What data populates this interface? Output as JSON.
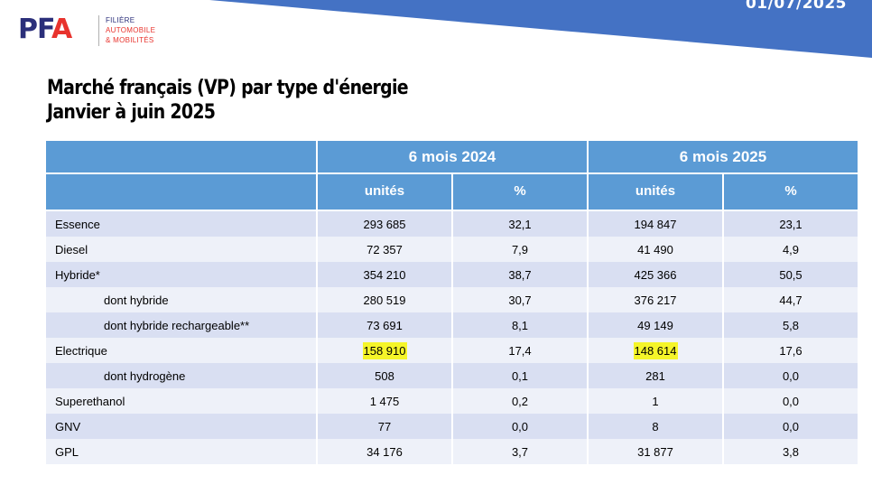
{
  "slide": {
    "date": "01/07/2025",
    "logo": {
      "mark": "PFA",
      "lines": [
        "FILIÈRE",
        "AUTOMOBILE",
        "& MOBILITÉS"
      ]
    },
    "title_line1": "Marché français (VP) par type d'énergie",
    "title_line2": "Janvier à juin 2025"
  },
  "colors": {
    "banner": "#4472c4",
    "header": "#5b9bd5",
    "row_dark": "#d9dff2",
    "row_light": "#eef1f9",
    "highlight": "#f5f529"
  },
  "table": {
    "period_2024": "6 mois 2024",
    "period_2025": "6 mois 2025",
    "col_units": "unités",
    "col_pct": "%",
    "rows": [
      {
        "label": "Essence",
        "u2024": "293 685",
        "p2024": "32,1",
        "u2025": "194 847",
        "p2025": "23,1"
      },
      {
        "label": "Diesel",
        "u2024": "72 357",
        "p2024": "7,9",
        "u2025": "41 490",
        "p2025": "4,9"
      },
      {
        "label": "Hybride*",
        "u2024": "354 210",
        "p2024": "38,7",
        "u2025": "425 366",
        "p2025": "50,5"
      },
      {
        "label": "dont hybride",
        "u2024": "280 519",
        "p2024": "30,7",
        "u2025": "376 217",
        "p2025": "44,7"
      },
      {
        "label": "dont hybride rechargeable**",
        "u2024": "73 691",
        "p2024": "8,1",
        "u2025": "49 149",
        "p2025": "5,8"
      },
      {
        "label": "Electrique",
        "u2024": "158 910",
        "p2024": "17,4",
        "u2025": "148 614",
        "p2025": "17,6"
      },
      {
        "label": "dont hydrogène",
        "u2024": "508",
        "p2024": "0,1",
        "u2025": "281",
        "p2025": "0,0"
      },
      {
        "label": "Superethanol",
        "u2024": "1 475",
        "p2024": "0,2",
        "u2025": "1",
        "p2025": "0,0"
      },
      {
        "label": "GNV",
        "u2024": "77",
        "p2024": "0,0",
        "u2025": "8",
        "p2025": "0,0"
      },
      {
        "label": "GPL",
        "u2024": "34 176",
        "p2024": "3,7",
        "u2025": "31 877",
        "p2025": "3,8"
      }
    ]
  }
}
